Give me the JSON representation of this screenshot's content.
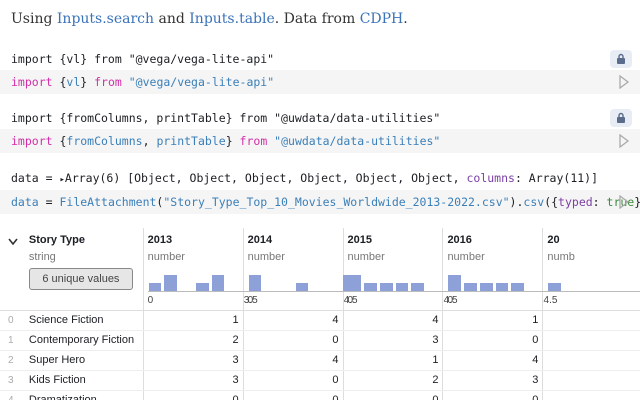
{
  "intro": {
    "prefix": "Using ",
    "link1": "Inputs.search",
    "and": " and ",
    "link2": "Inputs.table",
    "middle": ". Data from ",
    "link3": "CDPH",
    "suffix": "."
  },
  "cells": [
    {
      "output": "import {vl} from \"@vega/vega-lite-api\"",
      "code": {
        "kw1": "import ",
        "open": "{",
        "name": "vl",
        "close": "} ",
        "kw2": "from ",
        "str": "\"@vega/vega-lite-api\""
      }
    },
    {
      "output": "import {fromColumns, printTable} from \"@uwdata/data-utilities\"",
      "code": {
        "kw1": "import ",
        "open": "{",
        "name1": "fromColumns",
        "sep": ", ",
        "name2": "printTable",
        "close": "} ",
        "kw2": "from ",
        "str": "\"@uwdata/data-utilities\""
      }
    },
    {
      "output": {
        "prefix": "data = ",
        "arrow": "▸",
        "array": "Array(6) [Object, Object, Object, Object, Object, Object, ",
        "attr": "columns",
        "rest": ": Array(11)]"
      },
      "code": {
        "var": "data",
        "eq": " = ",
        "fn": "FileAttachment",
        "open": "(",
        "str": "\"Story_Type_Top_10_Movies_Worldwide_2013-2022.csv\"",
        "mid": ").",
        "method": "csv",
        "open2": "({",
        "attr": "typed",
        "colon": ": ",
        "val": "true",
        "close": "})"
      }
    }
  ],
  "table": {
    "first_column": {
      "header": "Story Type",
      "type": "string",
      "summary": "6 unique values"
    },
    "columns": [
      {
        "header": "2013",
        "type": "number",
        "min": "0",
        "max": "3.5"
      },
      {
        "header": "2014",
        "type": "number",
        "min": "0",
        "max": "4.5"
      },
      {
        "header": "2015",
        "type": "number",
        "min": "0",
        "max": "4.5"
      },
      {
        "header": "2016",
        "type": "number",
        "min": "0",
        "max": "4.5"
      },
      {
        "header": "20",
        "type": "numb",
        "min": "",
        "max": ""
      }
    ],
    "histograms": [
      [
        0.33,
        0.67,
        0,
        0.33,
        0.67
      ],
      [
        0.67,
        0,
        0,
        0.33,
        0,
        0,
        0.67
      ],
      [
        0.67,
        0.33,
        0.33,
        0.33,
        0.33,
        0,
        0
      ],
      [
        0.67,
        0.33,
        0.33,
        0.33,
        0.33,
        0,
        0
      ],
      [
        0.33
      ]
    ],
    "rows": [
      {
        "index": "0",
        "label": "Science Fiction",
        "values": [
          "1",
          "4",
          "4",
          "1",
          ""
        ]
      },
      {
        "index": "1",
        "label": "Contemporary Fiction",
        "values": [
          "2",
          "0",
          "3",
          "0",
          ""
        ]
      },
      {
        "index": "2",
        "label": "Super Hero",
        "values": [
          "3",
          "4",
          "1",
          "4",
          ""
        ]
      },
      {
        "index": "3",
        "label": "Kids Fiction",
        "values": [
          "3",
          "0",
          "2",
          "3",
          ""
        ]
      },
      {
        "index": "4",
        "label": "Dramatization",
        "values": [
          "0",
          "0",
          "0",
          "0",
          ""
        ]
      }
    ]
  },
  "icons": {
    "lock": "lock-icon",
    "play": "play-icon",
    "collapse": "chevron-down-icon"
  },
  "colors": {
    "keyword": "#d12fa8",
    "string": "#3b7fb8",
    "bars": "#8da0d8",
    "link": "#3b73b9"
  }
}
